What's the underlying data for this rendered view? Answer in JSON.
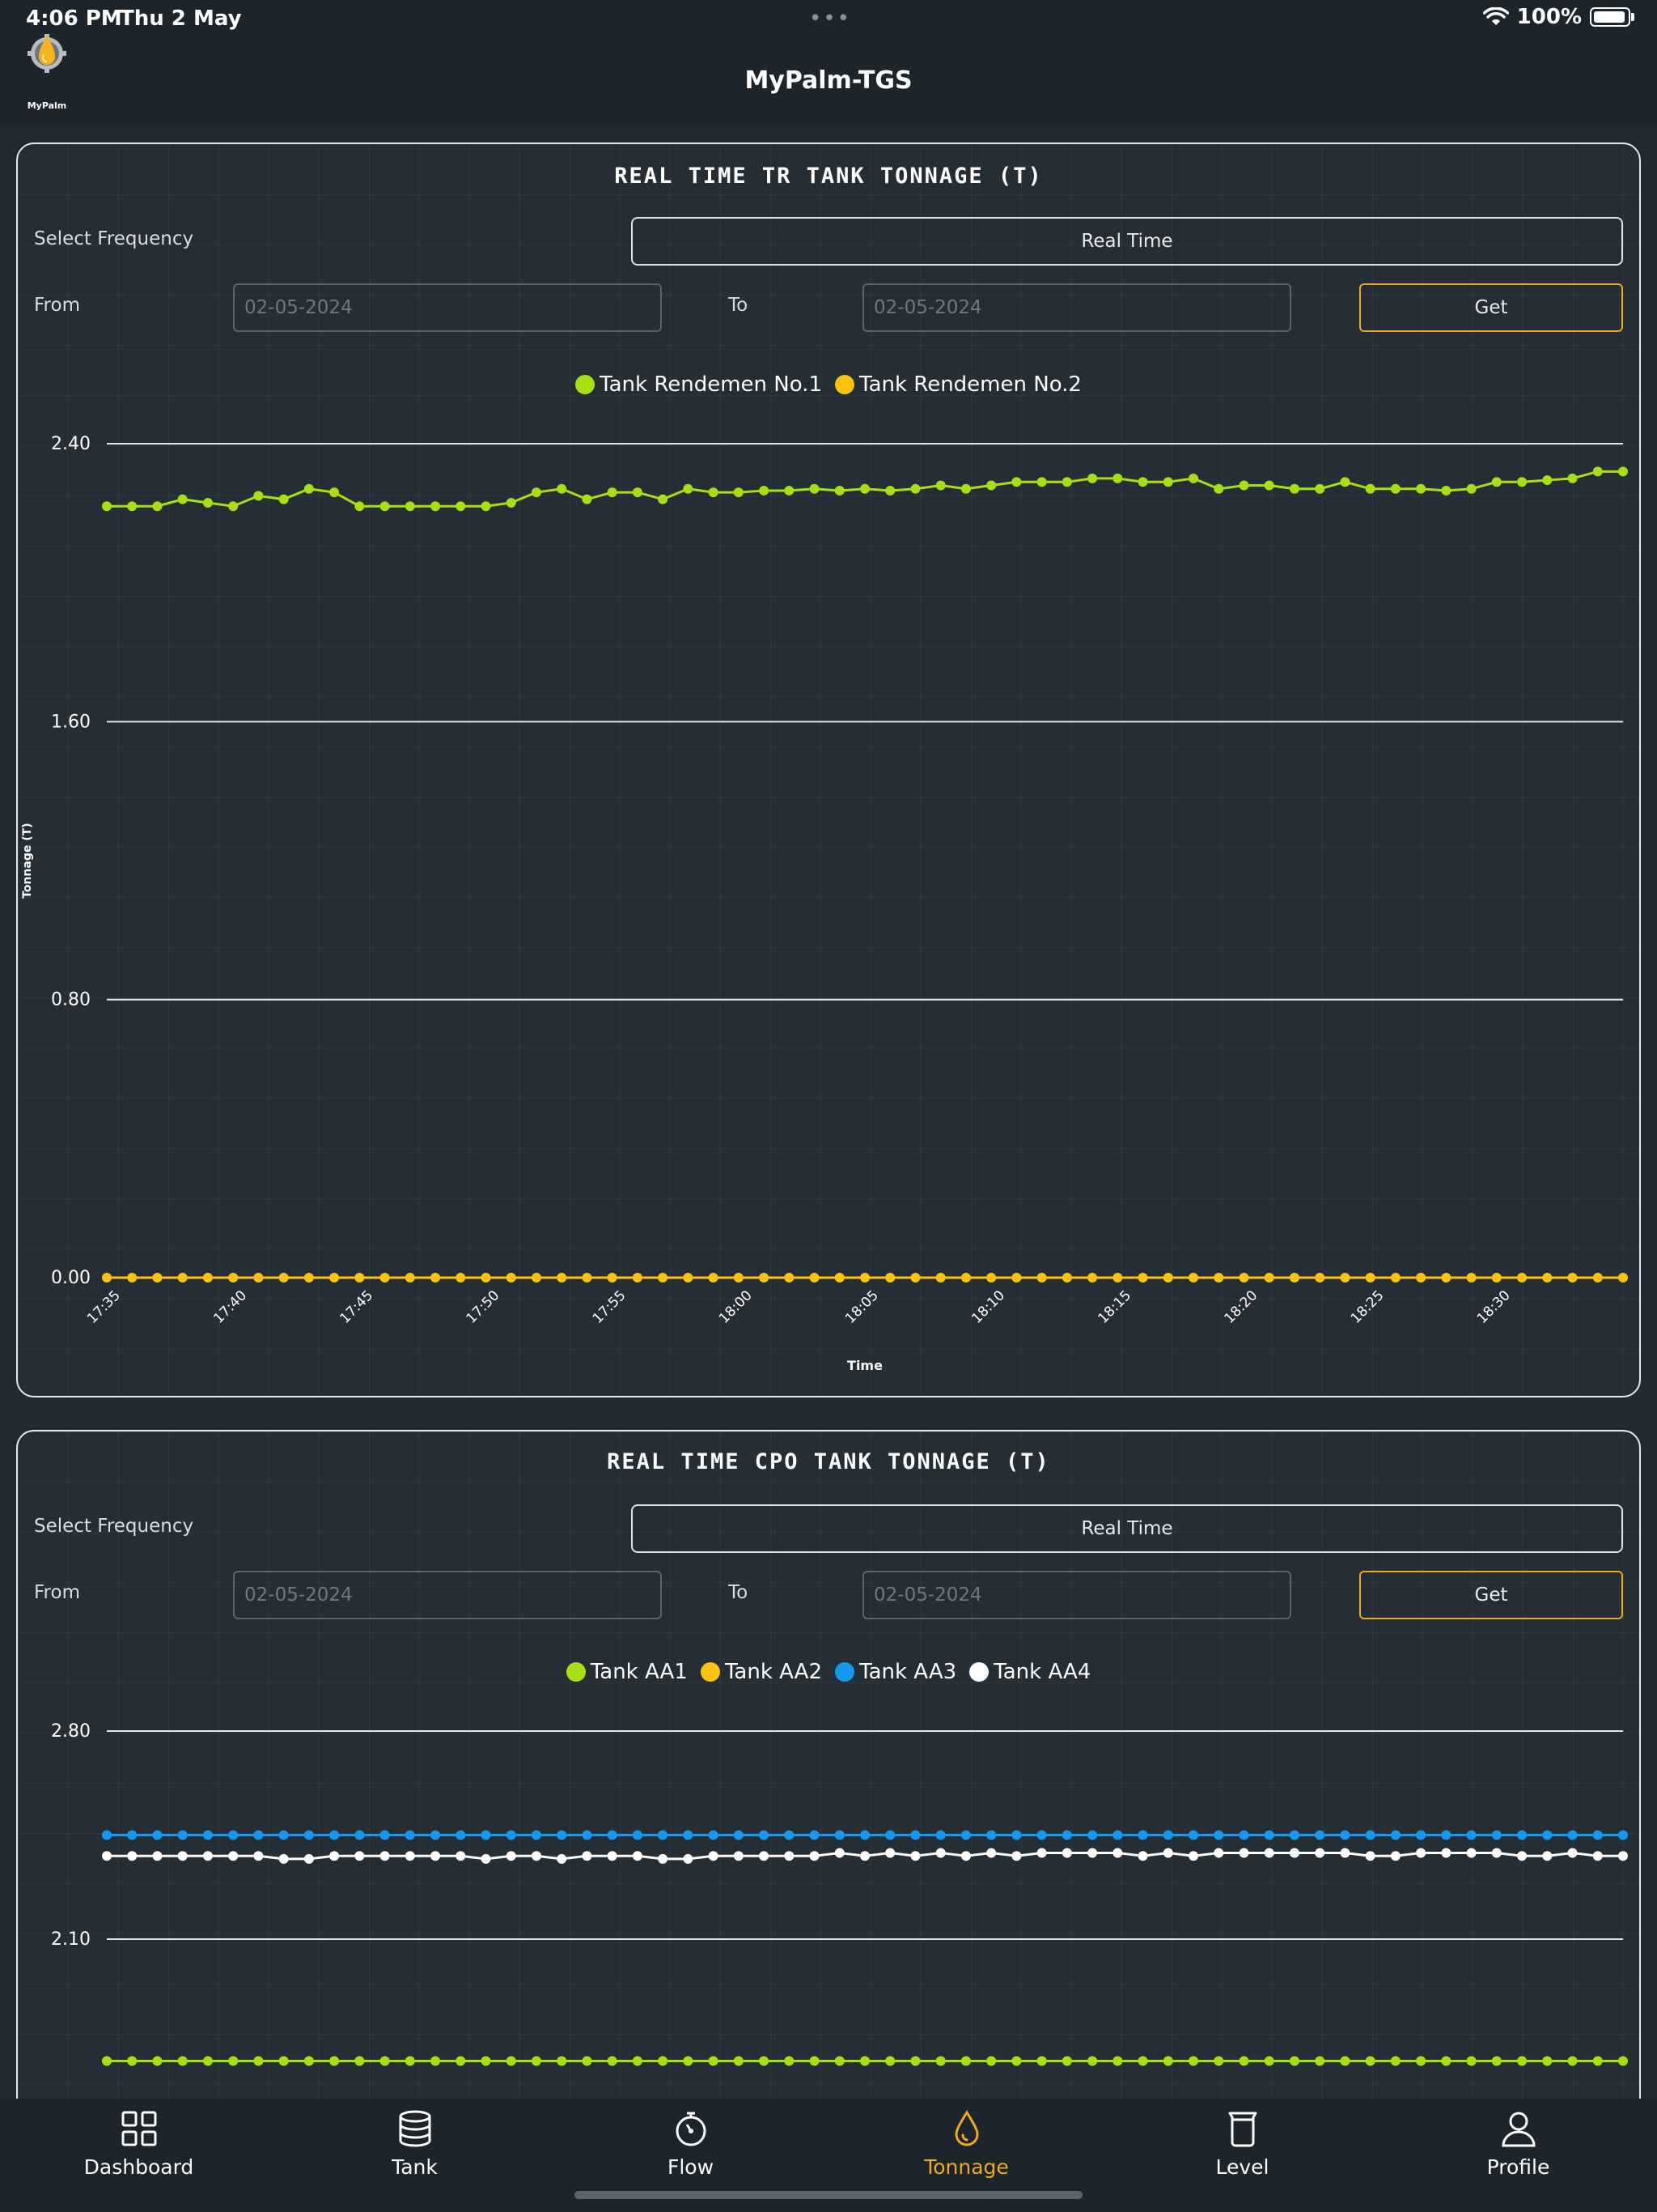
{
  "status": {
    "time": "4:06 PM",
    "date": "Thu 2 May",
    "dots": "•••",
    "battery": "100%"
  },
  "header": {
    "logo_text": "MyPalm",
    "title": "MyPalm-TGS"
  },
  "colors": {
    "accent": "#f0a91c",
    "green": "#a8df12",
    "yellow": "#fbc30f",
    "blue": "#1598ef",
    "white": "#ffffff"
  },
  "panels": [
    {
      "title": "REAL TIME TR TANK TONNAGE (T)",
      "frequency_label": "Select Frequency",
      "frequency_value": "Real Time",
      "from_label": "From",
      "from_placeholder": "02-05-2024",
      "to_label": "To",
      "to_placeholder": "02-05-2024",
      "get_label": "Get"
    },
    {
      "title": "REAL TIME CPO TANK TONNAGE (T)",
      "frequency_label": "Select Frequency",
      "frequency_value": "Real Time",
      "from_label": "From",
      "from_placeholder": "02-05-2024",
      "to_label": "To",
      "to_placeholder": "02-05-2024",
      "get_label": "Get"
    }
  ],
  "chart_data": [
    {
      "type": "line",
      "title": "REAL TIME TR TANK TONNAGE (T)",
      "xlabel": "Time",
      "ylabel": "Tonnage (T)",
      "ylim": [
        0,
        2.4
      ],
      "yticks": [
        "0.00",
        "0.80",
        "1.60",
        "2.40"
      ],
      "xticks": [
        "17:35",
        "17:40",
        "17:45",
        "17:50",
        "17:55",
        "18:00",
        "18:05",
        "18:10",
        "18:15",
        "18:20",
        "18:25",
        "18:30"
      ],
      "legend_position": "top-center",
      "series": [
        {
          "name": "Tank Rendemen No.1",
          "color": "#a8df12",
          "values": [
            2.22,
            2.22,
            2.22,
            2.24,
            2.23,
            2.22,
            2.25,
            2.24,
            2.27,
            2.26,
            2.22,
            2.22,
            2.22,
            2.22,
            2.22,
            2.22,
            2.23,
            2.26,
            2.27,
            2.24,
            2.26,
            2.26,
            2.24,
            2.27,
            2.26,
            2.26,
            2.265,
            2.265,
            2.27,
            2.265,
            2.27,
            2.265,
            2.27,
            2.28,
            2.27,
            2.28,
            2.29,
            2.29,
            2.29,
            2.3,
            2.3,
            2.29,
            2.29,
            2.3,
            2.27,
            2.28,
            2.28,
            2.27,
            2.27,
            2.29,
            2.27,
            2.27,
            2.27,
            2.265,
            2.27,
            2.29,
            2.29,
            2.295,
            2.3,
            2.32,
            2.32
          ]
        },
        {
          "name": "Tank Rendemen No.2",
          "color": "#fbc30f",
          "values": [
            0,
            0,
            0,
            0,
            0,
            0,
            0,
            0,
            0,
            0,
            0,
            0,
            0,
            0,
            0,
            0,
            0,
            0,
            0,
            0,
            0,
            0,
            0,
            0,
            0,
            0,
            0,
            0,
            0,
            0,
            0,
            0,
            0,
            0,
            0,
            0,
            0,
            0,
            0,
            0,
            0,
            0,
            0,
            0,
            0,
            0,
            0,
            0,
            0,
            0,
            0,
            0,
            0,
            0,
            0,
            0,
            0,
            0,
            0,
            0,
            0
          ]
        }
      ]
    },
    {
      "type": "line",
      "title": "REAL TIME CPO TANK TONNAGE (T)",
      "ylim": [
        1.4,
        2.8
      ],
      "yticks": [
        "2.10",
        "2.80"
      ],
      "legend_position": "top-center",
      "series": [
        {
          "name": "Tank AA1",
          "color": "#a8df12",
          "values": [
            1.69,
            1.69,
            1.69,
            1.69,
            1.69,
            1.69,
            1.69,
            1.69,
            1.69,
            1.69,
            1.69,
            1.69,
            1.69,
            1.69,
            1.69,
            1.69,
            1.69,
            1.69,
            1.69,
            1.69,
            1.69,
            1.69,
            1.69,
            1.69,
            1.69,
            1.69,
            1.69,
            1.69,
            1.69,
            1.69,
            1.69,
            1.69,
            1.69,
            1.69,
            1.69,
            1.69,
            1.69,
            1.69,
            1.69,
            1.69,
            1.69,
            1.69,
            1.69,
            1.69,
            1.69,
            1.69,
            1.69,
            1.69,
            1.69,
            1.69,
            1.69,
            1.69,
            1.69,
            1.69,
            1.69,
            1.69,
            1.69,
            1.69,
            1.69,
            1.69,
            1.69
          ]
        },
        {
          "name": "Tank AA2",
          "color": "#fbc30f",
          "values": []
        },
        {
          "name": "Tank AA3",
          "color": "#1598ef",
          "values": [
            2.45,
            2.45,
            2.45,
            2.45,
            2.45,
            2.45,
            2.45,
            2.45,
            2.45,
            2.45,
            2.45,
            2.45,
            2.45,
            2.45,
            2.45,
            2.45,
            2.45,
            2.45,
            2.45,
            2.45,
            2.45,
            2.45,
            2.45,
            2.45,
            2.45,
            2.45,
            2.45,
            2.45,
            2.45,
            2.45,
            2.45,
            2.45,
            2.45,
            2.45,
            2.45,
            2.45,
            2.45,
            2.45,
            2.45,
            2.45,
            2.45,
            2.45,
            2.45,
            2.45,
            2.45,
            2.45,
            2.45,
            2.45,
            2.45,
            2.45,
            2.45,
            2.45,
            2.45,
            2.45,
            2.45,
            2.45,
            2.45,
            2.45,
            2.45,
            2.45,
            2.45
          ]
        },
        {
          "name": "Tank AA4",
          "color": "#ffffff",
          "values": [
            2.38,
            2.38,
            2.38,
            2.38,
            2.38,
            2.38,
            2.38,
            2.37,
            2.37,
            2.38,
            2.38,
            2.38,
            2.38,
            2.38,
            2.38,
            2.37,
            2.38,
            2.38,
            2.37,
            2.38,
            2.38,
            2.38,
            2.37,
            2.37,
            2.38,
            2.38,
            2.38,
            2.38,
            2.38,
            2.39,
            2.38,
            2.39,
            2.38,
            2.39,
            2.38,
            2.39,
            2.38,
            2.39,
            2.39,
            2.39,
            2.39,
            2.38,
            2.39,
            2.38,
            2.39,
            2.39,
            2.39,
            2.39,
            2.39,
            2.39,
            2.38,
            2.38,
            2.39,
            2.39,
            2.39,
            2.39,
            2.38,
            2.38,
            2.39,
            2.38,
            2.38
          ]
        }
      ]
    }
  ],
  "tabs": [
    {
      "label": "Dashboard",
      "icon": "dashboard-icon"
    },
    {
      "label": "Tank",
      "icon": "database-icon"
    },
    {
      "label": "Flow",
      "icon": "stopwatch-icon"
    },
    {
      "label": "Tonnage",
      "icon": "droplet-icon",
      "active": true
    },
    {
      "label": "Level",
      "icon": "beaker-icon"
    },
    {
      "label": "Profile",
      "icon": "user-icon"
    }
  ]
}
